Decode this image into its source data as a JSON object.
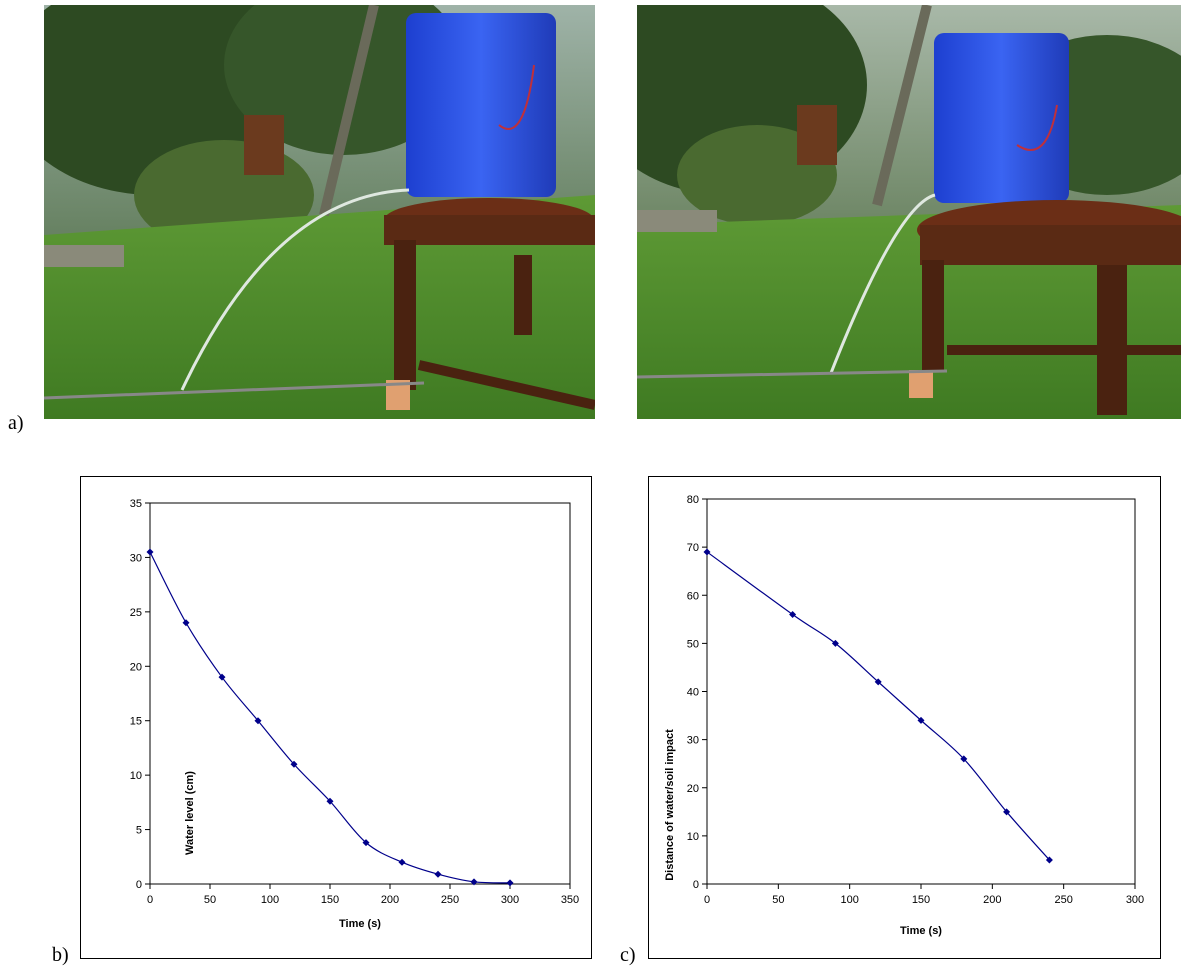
{
  "labels": {
    "a": "a)",
    "b": "b)",
    "c": "c)"
  },
  "colors": {
    "series": "#00008B",
    "grass": "#4f8f2e",
    "canister": "#2c4fe0",
    "table": "#5a2a14"
  },
  "chart_data": [
    {
      "type": "line",
      "xlabel": "Time (s)",
      "ylabel": "Water level (cm)",
      "xlim": [
        0,
        350
      ],
      "ylim": [
        0,
        35
      ],
      "xticks": [
        0,
        50,
        100,
        150,
        200,
        250,
        300,
        350
      ],
      "yticks": [
        0,
        5,
        10,
        15,
        20,
        25,
        30,
        35
      ],
      "grid": false,
      "series": [
        {
          "x": [
            0,
            30,
            60,
            90,
            120,
            150,
            180,
            210,
            240,
            270,
            300
          ],
          "y": [
            30.5,
            24,
            19,
            15,
            11,
            7.6,
            3.8,
            2,
            0.9,
            0.2,
            0.1
          ]
        }
      ]
    },
    {
      "type": "line",
      "xlabel": "Time (s)",
      "ylabel": "Distance of water/soil impact",
      "xlim": [
        0,
        300
      ],
      "ylim": [
        0,
        80
      ],
      "xticks": [
        0,
        50,
        100,
        150,
        200,
        250,
        300
      ],
      "yticks": [
        0,
        10,
        20,
        30,
        40,
        50,
        60,
        70,
        80
      ],
      "grid": false,
      "series": [
        {
          "x": [
            0,
            60,
            90,
            120,
            150,
            180,
            210,
            240
          ],
          "y": [
            69,
            56,
            50,
            42,
            34,
            26,
            15,
            5
          ]
        }
      ]
    }
  ]
}
